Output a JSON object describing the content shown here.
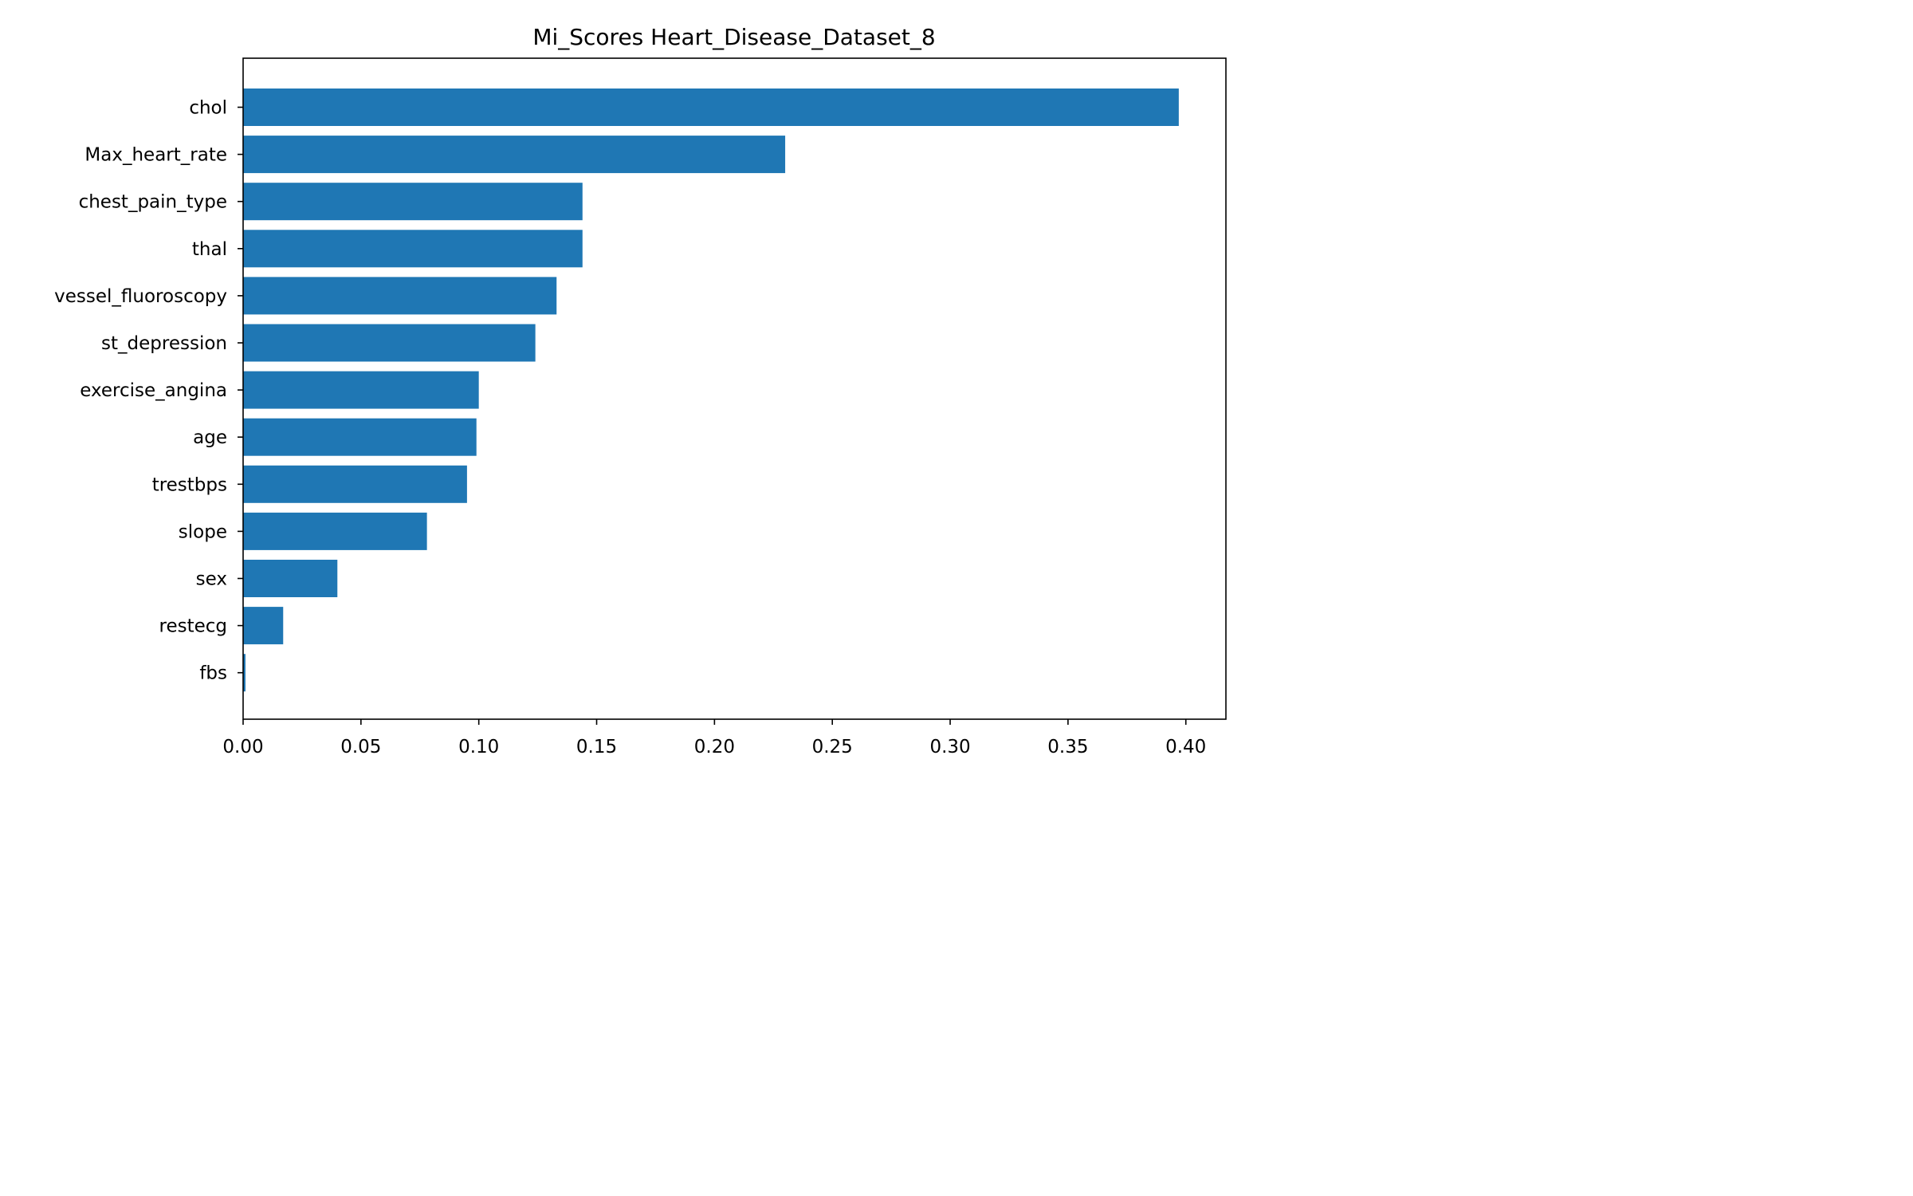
{
  "chart_data": {
    "type": "bar",
    "orientation": "horizontal",
    "title": "Mi_Scores Heart_Disease_Dataset_8",
    "xlabel": "",
    "ylabel": "",
    "categories": [
      "chol",
      "Max_heart_rate",
      "chest_pain_type",
      "thal",
      "vessel_fluoroscopy",
      "st_depression",
      "exercise_angina",
      "age",
      "trestbps",
      "slope",
      "sex",
      "restecg",
      "fbs"
    ],
    "values": [
      0.397,
      0.23,
      0.144,
      0.144,
      0.133,
      0.124,
      0.1,
      0.099,
      0.095,
      0.078,
      0.04,
      0.017,
      0.001
    ],
    "xlim": [
      0,
      0.417
    ],
    "xticks": [
      "0.00",
      "0.05",
      "0.10",
      "0.15",
      "0.20",
      "0.25",
      "0.30",
      "0.35",
      "0.40"
    ],
    "bar_color": "#1f77b4",
    "grid": false,
    "legend": "none"
  }
}
